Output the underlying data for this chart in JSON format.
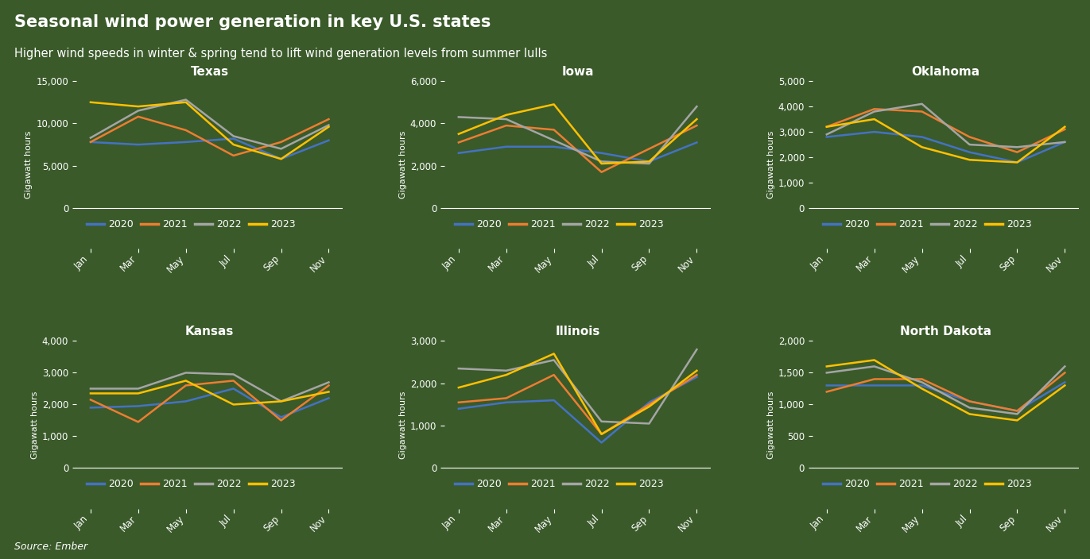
{
  "title": "Seasonal wind power generation in key U.S. states",
  "subtitle": "Higher wind speeds in winter & spring tend to lift wind generation levels from summer lulls",
  "source": "Source: Ember",
  "background_color": "#3a5a2a",
  "text_color": "#ffffff",
  "line_colors": {
    "2020": "#4472c4",
    "2021": "#ed7d31",
    "2022": "#a5a5a5",
    "2023": "#ffc000"
  },
  "months": [
    "Jan",
    "Mar",
    "May",
    "Jul",
    "Sep",
    "Nov"
  ],
  "ylabel": "Gigawatt hours",
  "states": {
    "Texas": {
      "ylim": [
        0,
        15000
      ],
      "yticks": [
        0,
        5000,
        10000,
        15000
      ],
      "data": {
        "2020": [
          7800,
          7500,
          7800,
          8200,
          5800,
          8000
        ],
        "2021": [
          7800,
          10800,
          9200,
          6200,
          7800,
          10500
        ],
        "2022": [
          8300,
          11500,
          12800,
          8500,
          7000,
          9800
        ],
        "2023": [
          12500,
          12000,
          12500,
          7500,
          5800,
          9600
        ]
      }
    },
    "Iowa": {
      "ylim": [
        0,
        6000
      ],
      "yticks": [
        0,
        2000,
        4000,
        6000
      ],
      "data": {
        "2020": [
          2600,
          2900,
          2900,
          2600,
          2200,
          3100
        ],
        "2021": [
          3100,
          3900,
          3700,
          1700,
          2800,
          3900
        ],
        "2022": [
          4300,
          4200,
          3200,
          2200,
          2100,
          4800
        ],
        "2023": [
          3500,
          4400,
          4900,
          2100,
          2200,
          4200
        ]
      }
    },
    "Oklahoma": {
      "ylim": [
        0,
        5000
      ],
      "yticks": [
        0,
        1000,
        2000,
        3000,
        4000,
        5000
      ],
      "data": {
        "2020": [
          2800,
          3000,
          2800,
          2200,
          1800,
          2600
        ],
        "2021": [
          3200,
          3900,
          3800,
          2800,
          2200,
          3100
        ],
        "2022": [
          2900,
          3800,
          4100,
          2500,
          2400,
          2600
        ],
        "2023": [
          3200,
          3500,
          2400,
          1900,
          1800,
          3200
        ]
      }
    },
    "Kansas": {
      "ylim": [
        0,
        4000
      ],
      "yticks": [
        0,
        1000,
        2000,
        3000,
        4000
      ],
      "data": {
        "2020": [
          1900,
          1950,
          2100,
          2500,
          1600,
          2200
        ],
        "2021": [
          2150,
          1450,
          2600,
          2750,
          1500,
          2600
        ],
        "2022": [
          2500,
          2500,
          3000,
          2950,
          2100,
          2700
        ],
        "2023": [
          2350,
          2350,
          2750,
          2000,
          2100,
          2400
        ]
      }
    },
    "Illinois": {
      "ylim": [
        0,
        3000
      ],
      "yticks": [
        0,
        1000,
        2000,
        3000
      ],
      "data": {
        "2020": [
          1400,
          1550,
          1600,
          600,
          1550,
          2150
        ],
        "2021": [
          1550,
          1650,
          2200,
          800,
          1500,
          2200
        ],
        "2022": [
          2350,
          2300,
          2550,
          1100,
          1050,
          2800
        ],
        "2023": [
          1900,
          2200,
          2700,
          800,
          1450,
          2300
        ]
      }
    },
    "North Dakota": {
      "ylim": [
        0,
        2000
      ],
      "yticks": [
        0,
        500,
        1000,
        1500,
        2000
      ],
      "data": {
        "2020": [
          1300,
          1300,
          1300,
          1050,
          900,
          1350
        ],
        "2021": [
          1200,
          1400,
          1400,
          1050,
          900,
          1500
        ],
        "2022": [
          1500,
          1600,
          1350,
          950,
          850,
          1600
        ],
        "2023": [
          1600,
          1700,
          1250,
          850,
          750,
          1300
        ]
      }
    }
  }
}
